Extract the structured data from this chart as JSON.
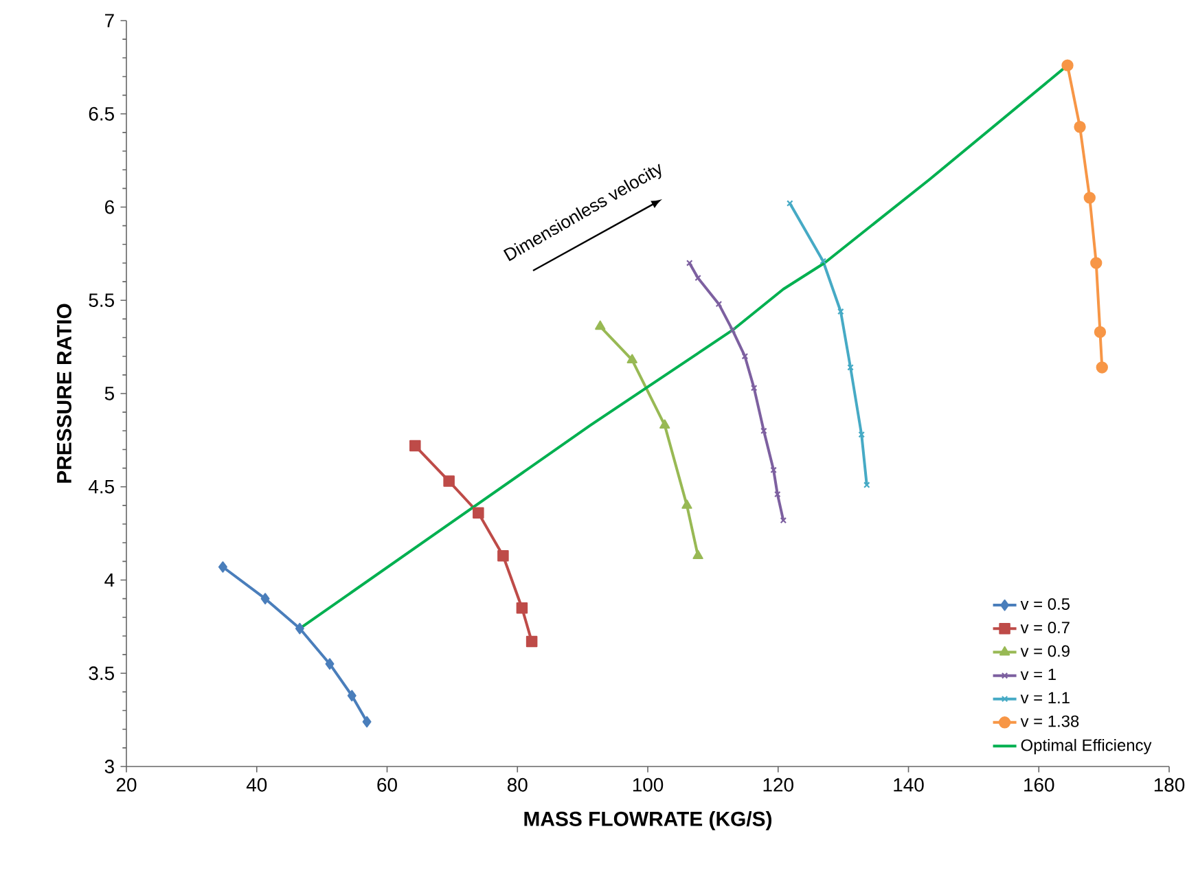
{
  "chart_data": {
    "type": "line",
    "xlabel": "MASS FLOWRATE (KG/S)",
    "ylabel": "PRESSURE RATIO",
    "annotations": [
      "Dimensionless velocity"
    ],
    "xlim": [
      20,
      180
    ],
    "xticks": [
      20,
      40,
      60,
      80,
      100,
      120,
      140,
      160,
      180
    ],
    "ylim": [
      3,
      7
    ],
    "yticks": [
      3,
      3.5,
      4,
      4.5,
      5,
      5.5,
      6,
      6.5,
      7
    ],
    "grid": false,
    "legend": "bottom right",
    "series": [
      {
        "name": "v = 0.5",
        "color": "#4a7ebb",
        "marker": "diamond",
        "x": [
          34.8,
          41.3,
          46.6,
          51.2,
          54.6,
          56.9
        ],
        "values": [
          4.07,
          3.9,
          3.74,
          3.55,
          3.38,
          3.24
        ]
      },
      {
        "name": "v = 0.7",
        "color": "#be4b48",
        "marker": "square",
        "x": [
          64.3,
          69.5,
          74.0,
          77.8,
          80.7,
          82.2
        ],
        "values": [
          4.72,
          4.53,
          4.36,
          4.13,
          3.85,
          3.67
        ]
      },
      {
        "name": "v = 0.9",
        "color": "#98b954",
        "marker": "triangle",
        "x": [
          92.7,
          97.6,
          102.6,
          106.0,
          107.7
        ],
        "values": [
          5.36,
          5.18,
          4.83,
          4.4,
          4.13
        ]
      },
      {
        "name": "v = 1",
        "color": "#7d60a0",
        "marker": "cross",
        "x": [
          106.4,
          107.7,
          110.9,
          113.0,
          114.9,
          116.3,
          117.8,
          119.3,
          119.9,
          120.8
        ],
        "values": [
          5.7,
          5.62,
          5.48,
          5.34,
          5.2,
          5.03,
          4.8,
          4.59,
          4.46,
          4.32
        ]
      },
      {
        "name": "v = 1.1",
        "color": "#46aac5",
        "marker": "cross",
        "x": [
          121.8,
          126.9,
          129.6,
          131.1,
          132.8,
          133.6
        ],
        "values": [
          6.02,
          5.71,
          5.44,
          5.14,
          4.78,
          4.51
        ]
      },
      {
        "name": "v = 1.38",
        "color": "#f79646",
        "marker": "circle",
        "x": [
          164.4,
          166.3,
          167.8,
          168.8,
          169.4,
          169.7
        ],
        "values": [
          6.76,
          6.43,
          6.05,
          5.7,
          5.33,
          5.14
        ]
      },
      {
        "name": "Optimal Efficiency",
        "color": "#00b050",
        "marker": "none",
        "x": [
          46.6,
          91.2,
          113.0,
          120.8,
          127.1,
          143.3,
          164.4
        ],
        "values": [
          3.74,
          4.83,
          5.34,
          5.56,
          5.7,
          6.15,
          6.76
        ]
      }
    ]
  }
}
